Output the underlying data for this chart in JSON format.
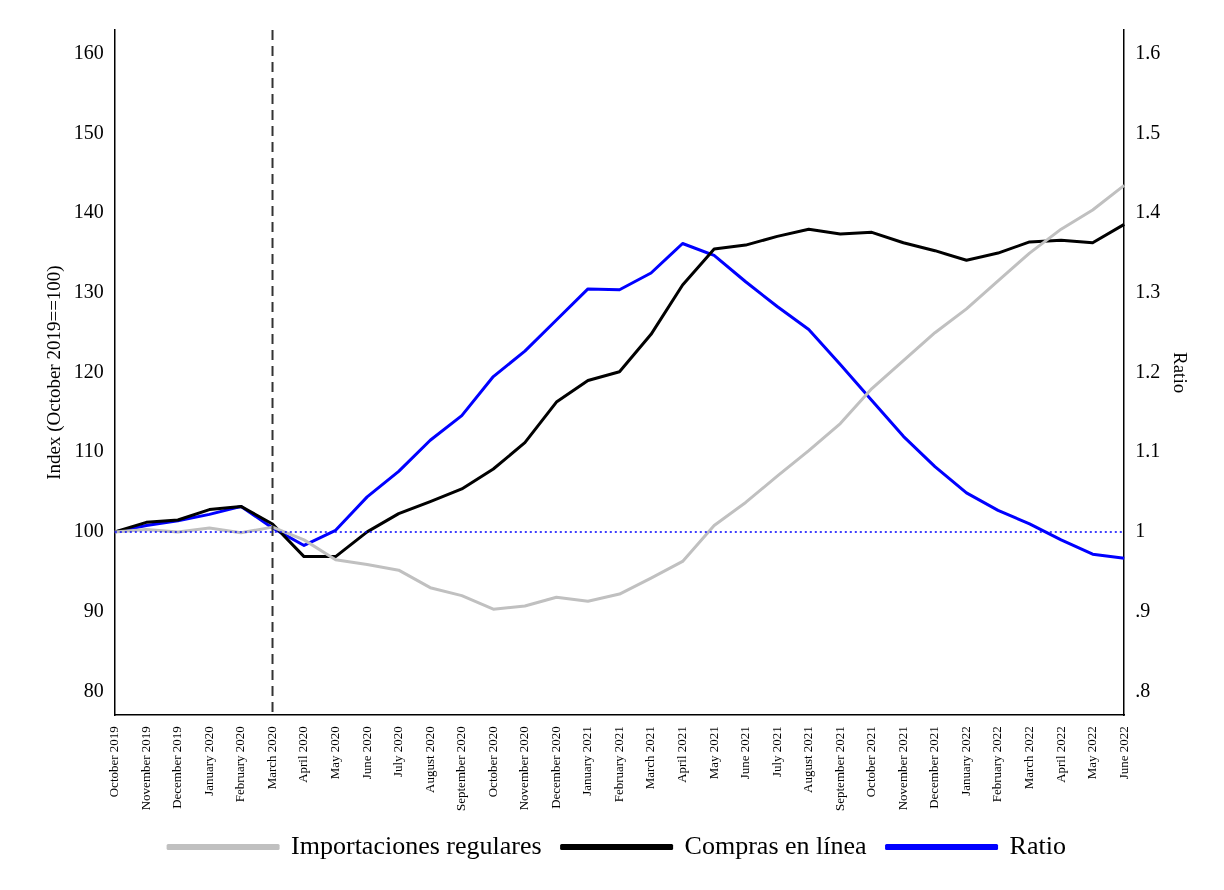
{
  "chart_data": {
    "type": "line",
    "categories": [
      "October 2019",
      "November 2019",
      "December 2019",
      "January 2020",
      "February 2020",
      "March 2020",
      "April 2020",
      "May 2020",
      "June 2020",
      "July 2020",
      "August 2020",
      "September 2020",
      "October 2020",
      "November 2020",
      "December 2020",
      "January 2021",
      "February 2021",
      "March 2021",
      "April 2021",
      "May 2021",
      "June 2021",
      "July 2021",
      "August 2021",
      "September 2021",
      "October 2021",
      "November 2021",
      "December 2021",
      "January 2022",
      "February 2022",
      "March 2022",
      "April 2022",
      "May 2022",
      "June 2022"
    ],
    "series": [
      {
        "name": "Importaciones regulares",
        "color": "#c0c0c0",
        "values": [
          100,
          100.3,
          100,
          100.5,
          99.9,
          100.6,
          99,
          96.5,
          95.9,
          95.2,
          93,
          92,
          90.3,
          90.7,
          91.8,
          91.3,
          92.2,
          94.2,
          96.3,
          100.8,
          103.7,
          107,
          110.2,
          113.6,
          118,
          121.5,
          125,
          128,
          131.5,
          135,
          138,
          140.4,
          143.5
        ]
      },
      {
        "name": "Compras en línea",
        "color": "#000000",
        "values": [
          100,
          101.2,
          101.5,
          102.8,
          103.2,
          101,
          96.9,
          96.9,
          100,
          102.3,
          103.8,
          105.4,
          107.9,
          111.2,
          116.3,
          119,
          120.1,
          124.8,
          131,
          135.5,
          136,
          137.1,
          138,
          137.4,
          137.6,
          136.3,
          135.3,
          134.1,
          135,
          136.4,
          136.6,
          136.3,
          138.6
        ]
      },
      {
        "name": "Ratio",
        "color": "#0000ff",
        "axis": "y2",
        "values": [
          1.0,
          1.008,
          1.014,
          1.022,
          1.032,
          1.005,
          0.983,
          1.002,
          1.044,
          1.076,
          1.115,
          1.146,
          1.195,
          1.227,
          1.266,
          1.305,
          1.304,
          1.325,
          1.362,
          1.347,
          1.314,
          1.283,
          1.254,
          1.21,
          1.165,
          1.12,
          1.082,
          1.049,
          1.027,
          1.01,
          0.99,
          0.972,
          0.967
        ]
      }
    ],
    "ylabel": "Index (October 2019==100)",
    "y2label": "Ratio",
    "ylim": [
      77,
      163
    ],
    "yticks": [
      80,
      90,
      100,
      110,
      120,
      130,
      140,
      150,
      160
    ],
    "y2lim": [
      0.77,
      1.63
    ],
    "y2ticks": [
      {
        "value": 0.8,
        "label": ".8"
      },
      {
        "value": 0.9,
        "label": ".9"
      },
      1,
      1.1,
      1.2,
      1.3,
      1.4,
      1.5,
      1.6
    ],
    "ref_lines": [
      {
        "axis": "x",
        "value": "March 2020",
        "color": "#333333",
        "line_style": "dashed"
      },
      {
        "axis": "y2",
        "value": 1,
        "color": "#0000ff",
        "line_style": "dotted"
      }
    ],
    "legend": "bottom",
    "grid": false,
    "marker": "none",
    "line_style": "solid"
  }
}
